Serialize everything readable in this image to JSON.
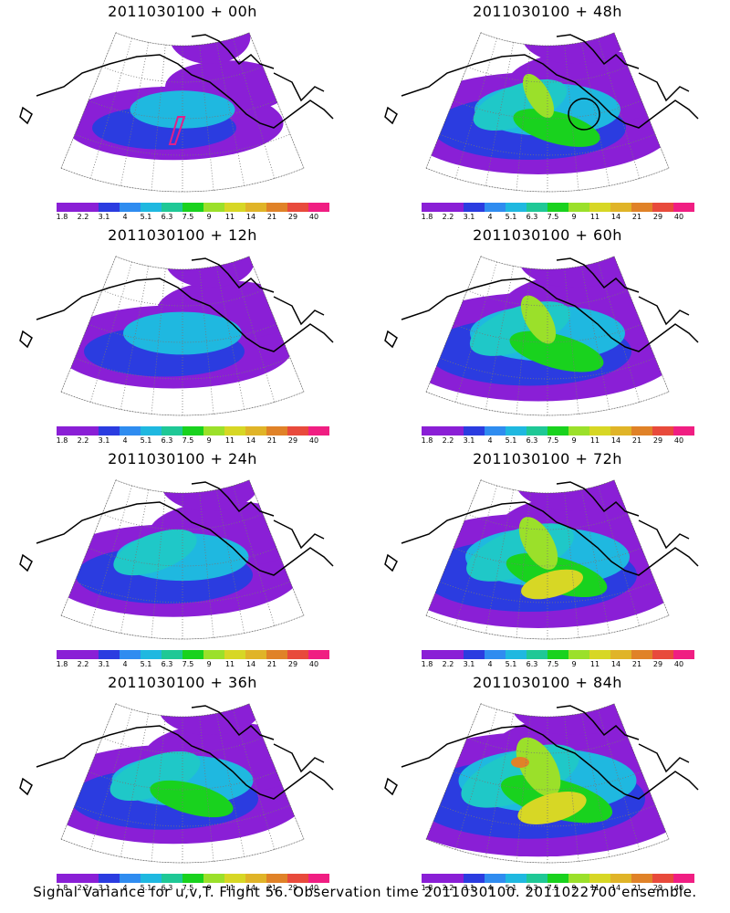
{
  "title_prefix": "2011030100",
  "panels": [
    {
      "title": "2011030100 + 00h",
      "lead": "00h",
      "intensity": 0.15,
      "marker": "box"
    },
    {
      "title": "2011030100 + 12h",
      "lead": "12h",
      "intensity": 0.3
    },
    {
      "title": "2011030100 + 24h",
      "lead": "24h",
      "intensity": 0.45
    },
    {
      "title": "2011030100 + 36h",
      "lead": "36h",
      "intensity": 0.55
    },
    {
      "title": "2011030100 + 48h",
      "lead": "48h",
      "intensity": 0.6,
      "marker": "circle"
    },
    {
      "title": "2011030100 + 60h",
      "lead": "60h",
      "intensity": 0.7
    },
    {
      "title": "2011030100 + 72h",
      "lead": "72h",
      "intensity": 0.8
    },
    {
      "title": "2011030100 + 84h",
      "lead": "84h",
      "intensity": 0.95
    }
  ],
  "colorbar": {
    "colors": [
      "#8a1fd6",
      "#8a1fd6",
      "#2b3ce0",
      "#2f8cf0",
      "#1fb8e0",
      "#1fc896",
      "#19d21e",
      "#9be02a",
      "#d7d725",
      "#e0b428",
      "#e08228",
      "#e84a3c",
      "#f01e82"
    ],
    "labels": [
      "1.8",
      "2.2",
      "3.1",
      "4",
      "5.1",
      "6.3",
      "7.5",
      "9",
      "11",
      "14",
      "21",
      "29",
      "40"
    ]
  },
  "caption": "Signal Variance for u,v,T. Flight 56. Observation time 2011030100. 2011022700 ensemble.",
  "palette": {
    "purple": "#8a1fd6",
    "blue": "#2b3ce0",
    "lightblue": "#1fb8e0",
    "cyan": "#1fc8c8",
    "green": "#19d21e",
    "lime": "#9be02a",
    "yellow": "#d7d725",
    "orange": "#e08228",
    "coast": "#000000",
    "grid": "#777777"
  }
}
